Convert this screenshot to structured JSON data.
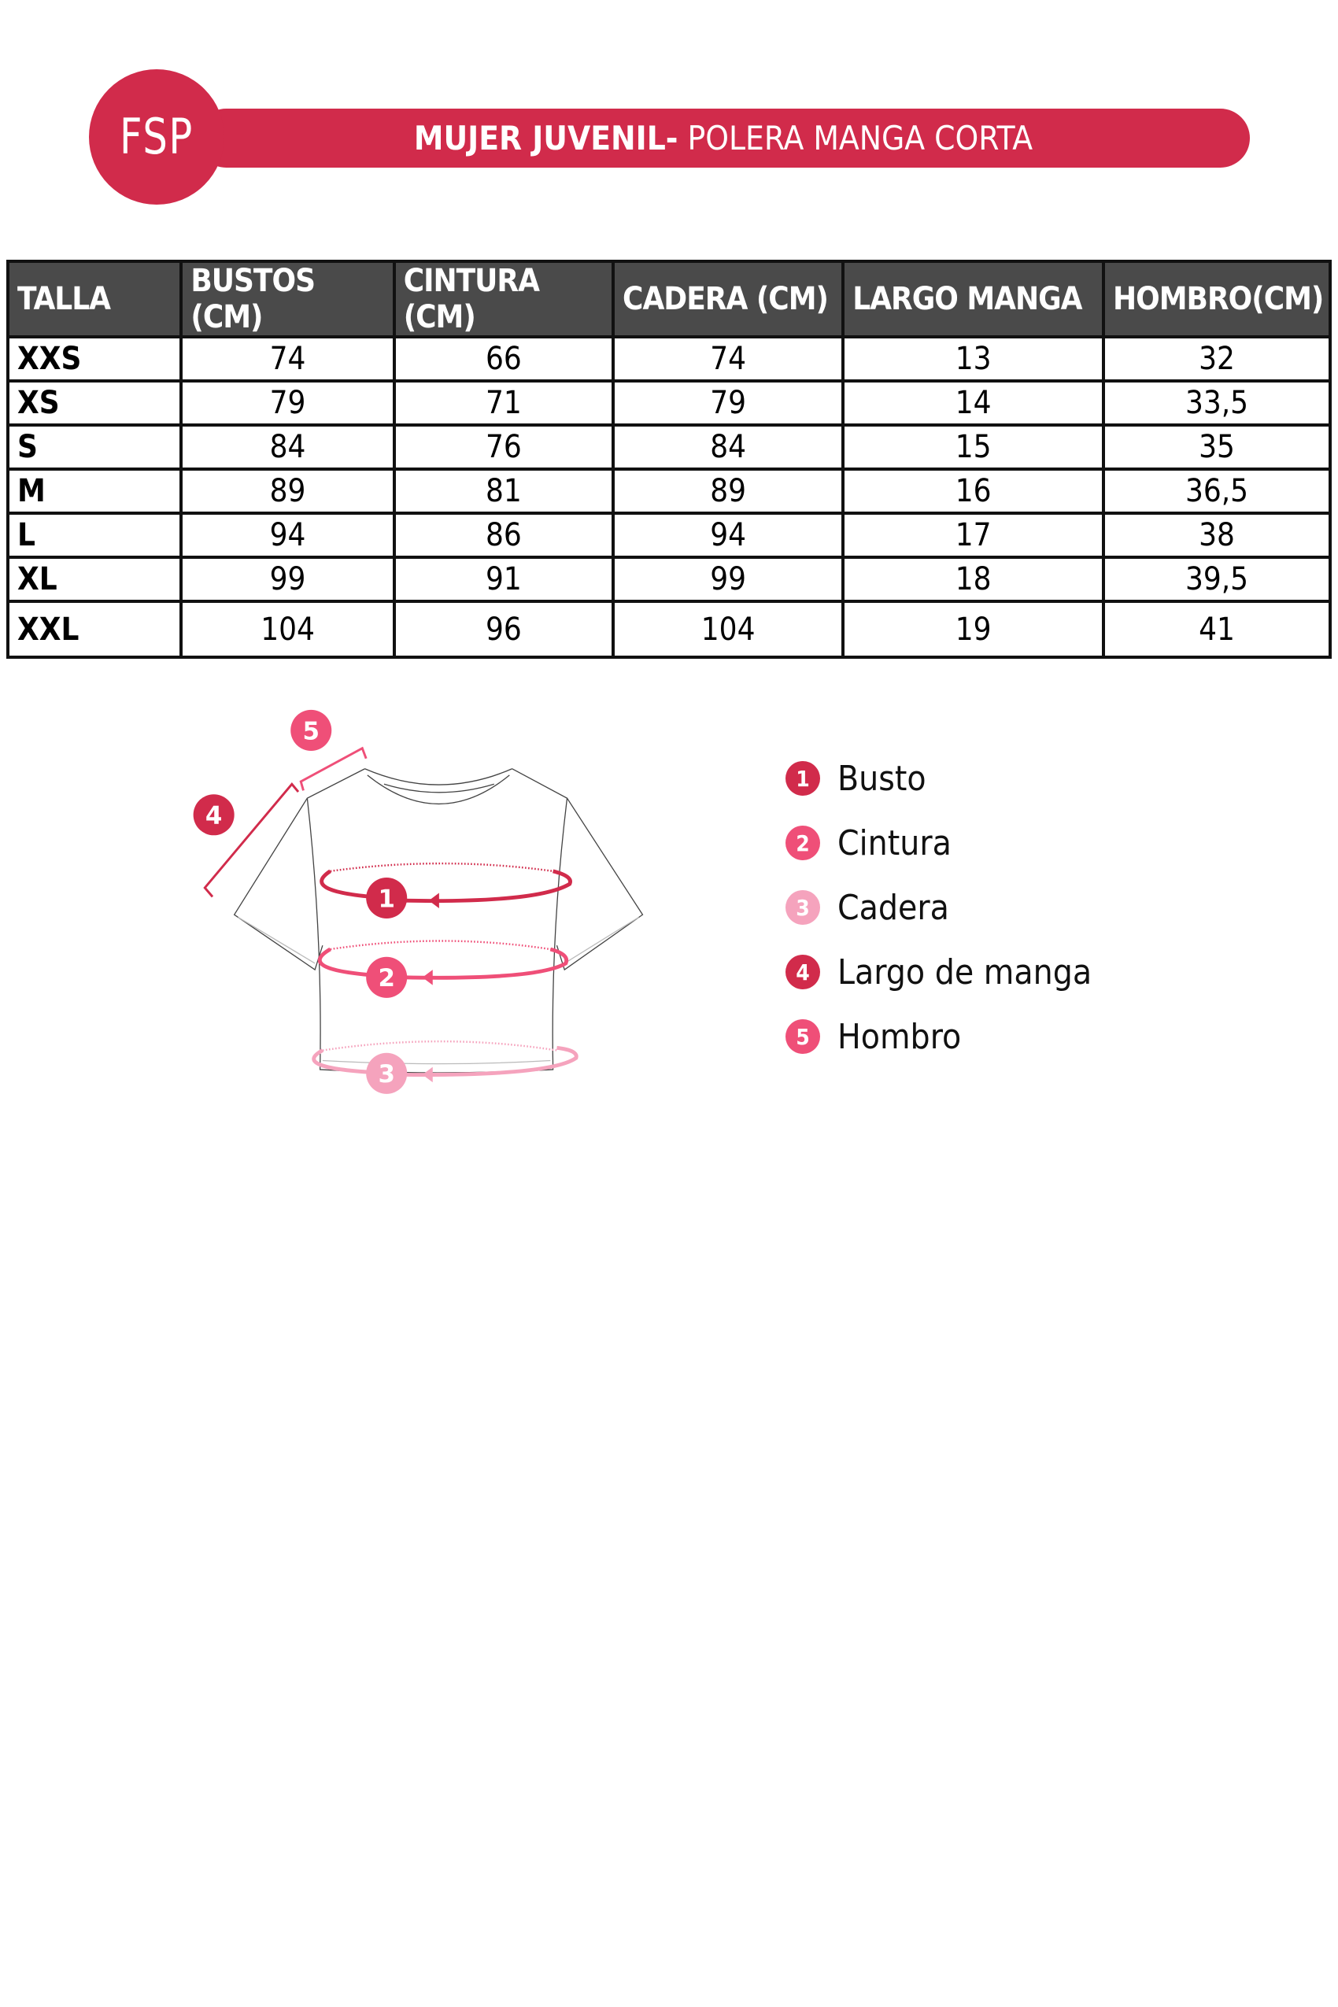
{
  "header": {
    "logo": "FSP",
    "title_bold": "MUJER JUVENIL-",
    "title_regular": " POLERA MANGA CORTA"
  },
  "colors": {
    "brand": "#d12b4b",
    "pink": "#ef4f78",
    "light_pink": "#f5a3bd",
    "header_gray": "#4a4a4a"
  },
  "table": {
    "headers": [
      "TALLA",
      "BUSTOS (CM)",
      "CINTURA (CM)",
      "CADERA (CM)",
      "LARGO MANGA",
      "HOMBRO(CM)"
    ],
    "rows": [
      [
        "XXS",
        "74",
        "66",
        "74",
        "13",
        "32"
      ],
      [
        "XS",
        "79",
        "71",
        "79",
        "14",
        "33,5"
      ],
      [
        "S",
        "84",
        "76",
        "84",
        "15",
        "35"
      ],
      [
        "M",
        "89",
        "81",
        "89",
        "16",
        "36,5"
      ],
      [
        "L",
        "94",
        "86",
        "94",
        "17",
        "38"
      ],
      [
        "XL",
        "99",
        "91",
        "99",
        "18",
        "39,5"
      ],
      [
        "XXL",
        "104",
        "96",
        "104",
        "19",
        "41"
      ]
    ]
  },
  "legend": [
    {
      "num": "1",
      "label": "Busto",
      "color": "#d12b4b"
    },
    {
      "num": "2",
      "label": "Cintura",
      "color": "#ef4f78"
    },
    {
      "num": "3",
      "label": "Cadera",
      "color": "#f5a3bd"
    },
    {
      "num": "4",
      "label": "Largo de manga",
      "color": "#d12b4b"
    },
    {
      "num": "5",
      "label": "Hombro",
      "color": "#ef4f78"
    }
  ]
}
